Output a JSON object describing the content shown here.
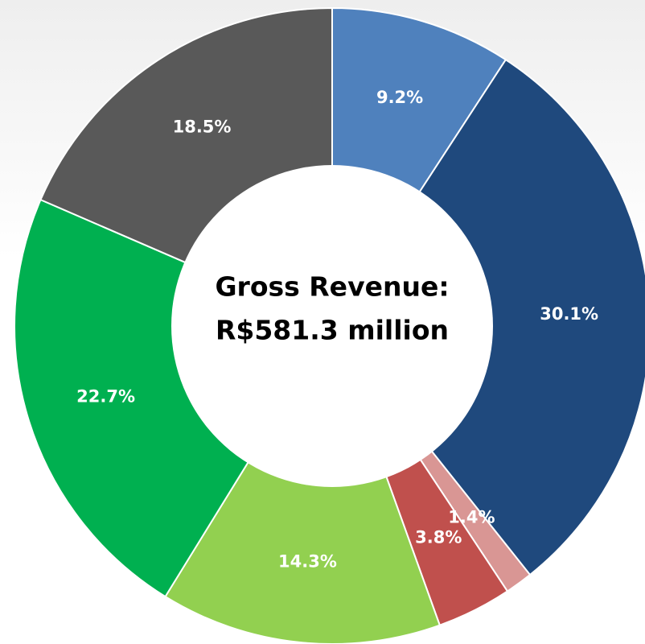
{
  "chart_data": {
    "type": "donut",
    "center_text": [
      "Gross Revenue:",
      "R$581.3 million"
    ],
    "values": [
      9.2,
      30.1,
      1.4,
      3.8,
      14.3,
      22.7,
      18.5
    ],
    "value_labels": [
      "9.2%",
      "30.1%",
      "1.4%",
      "3.8%",
      "14.3%",
      "22.7%",
      "18.5%"
    ],
    "colors": [
      "#4f81bd",
      "#1f497d",
      "#d99694",
      "#c0504d",
      "#92d050",
      "#00b050",
      "#595959"
    ]
  }
}
